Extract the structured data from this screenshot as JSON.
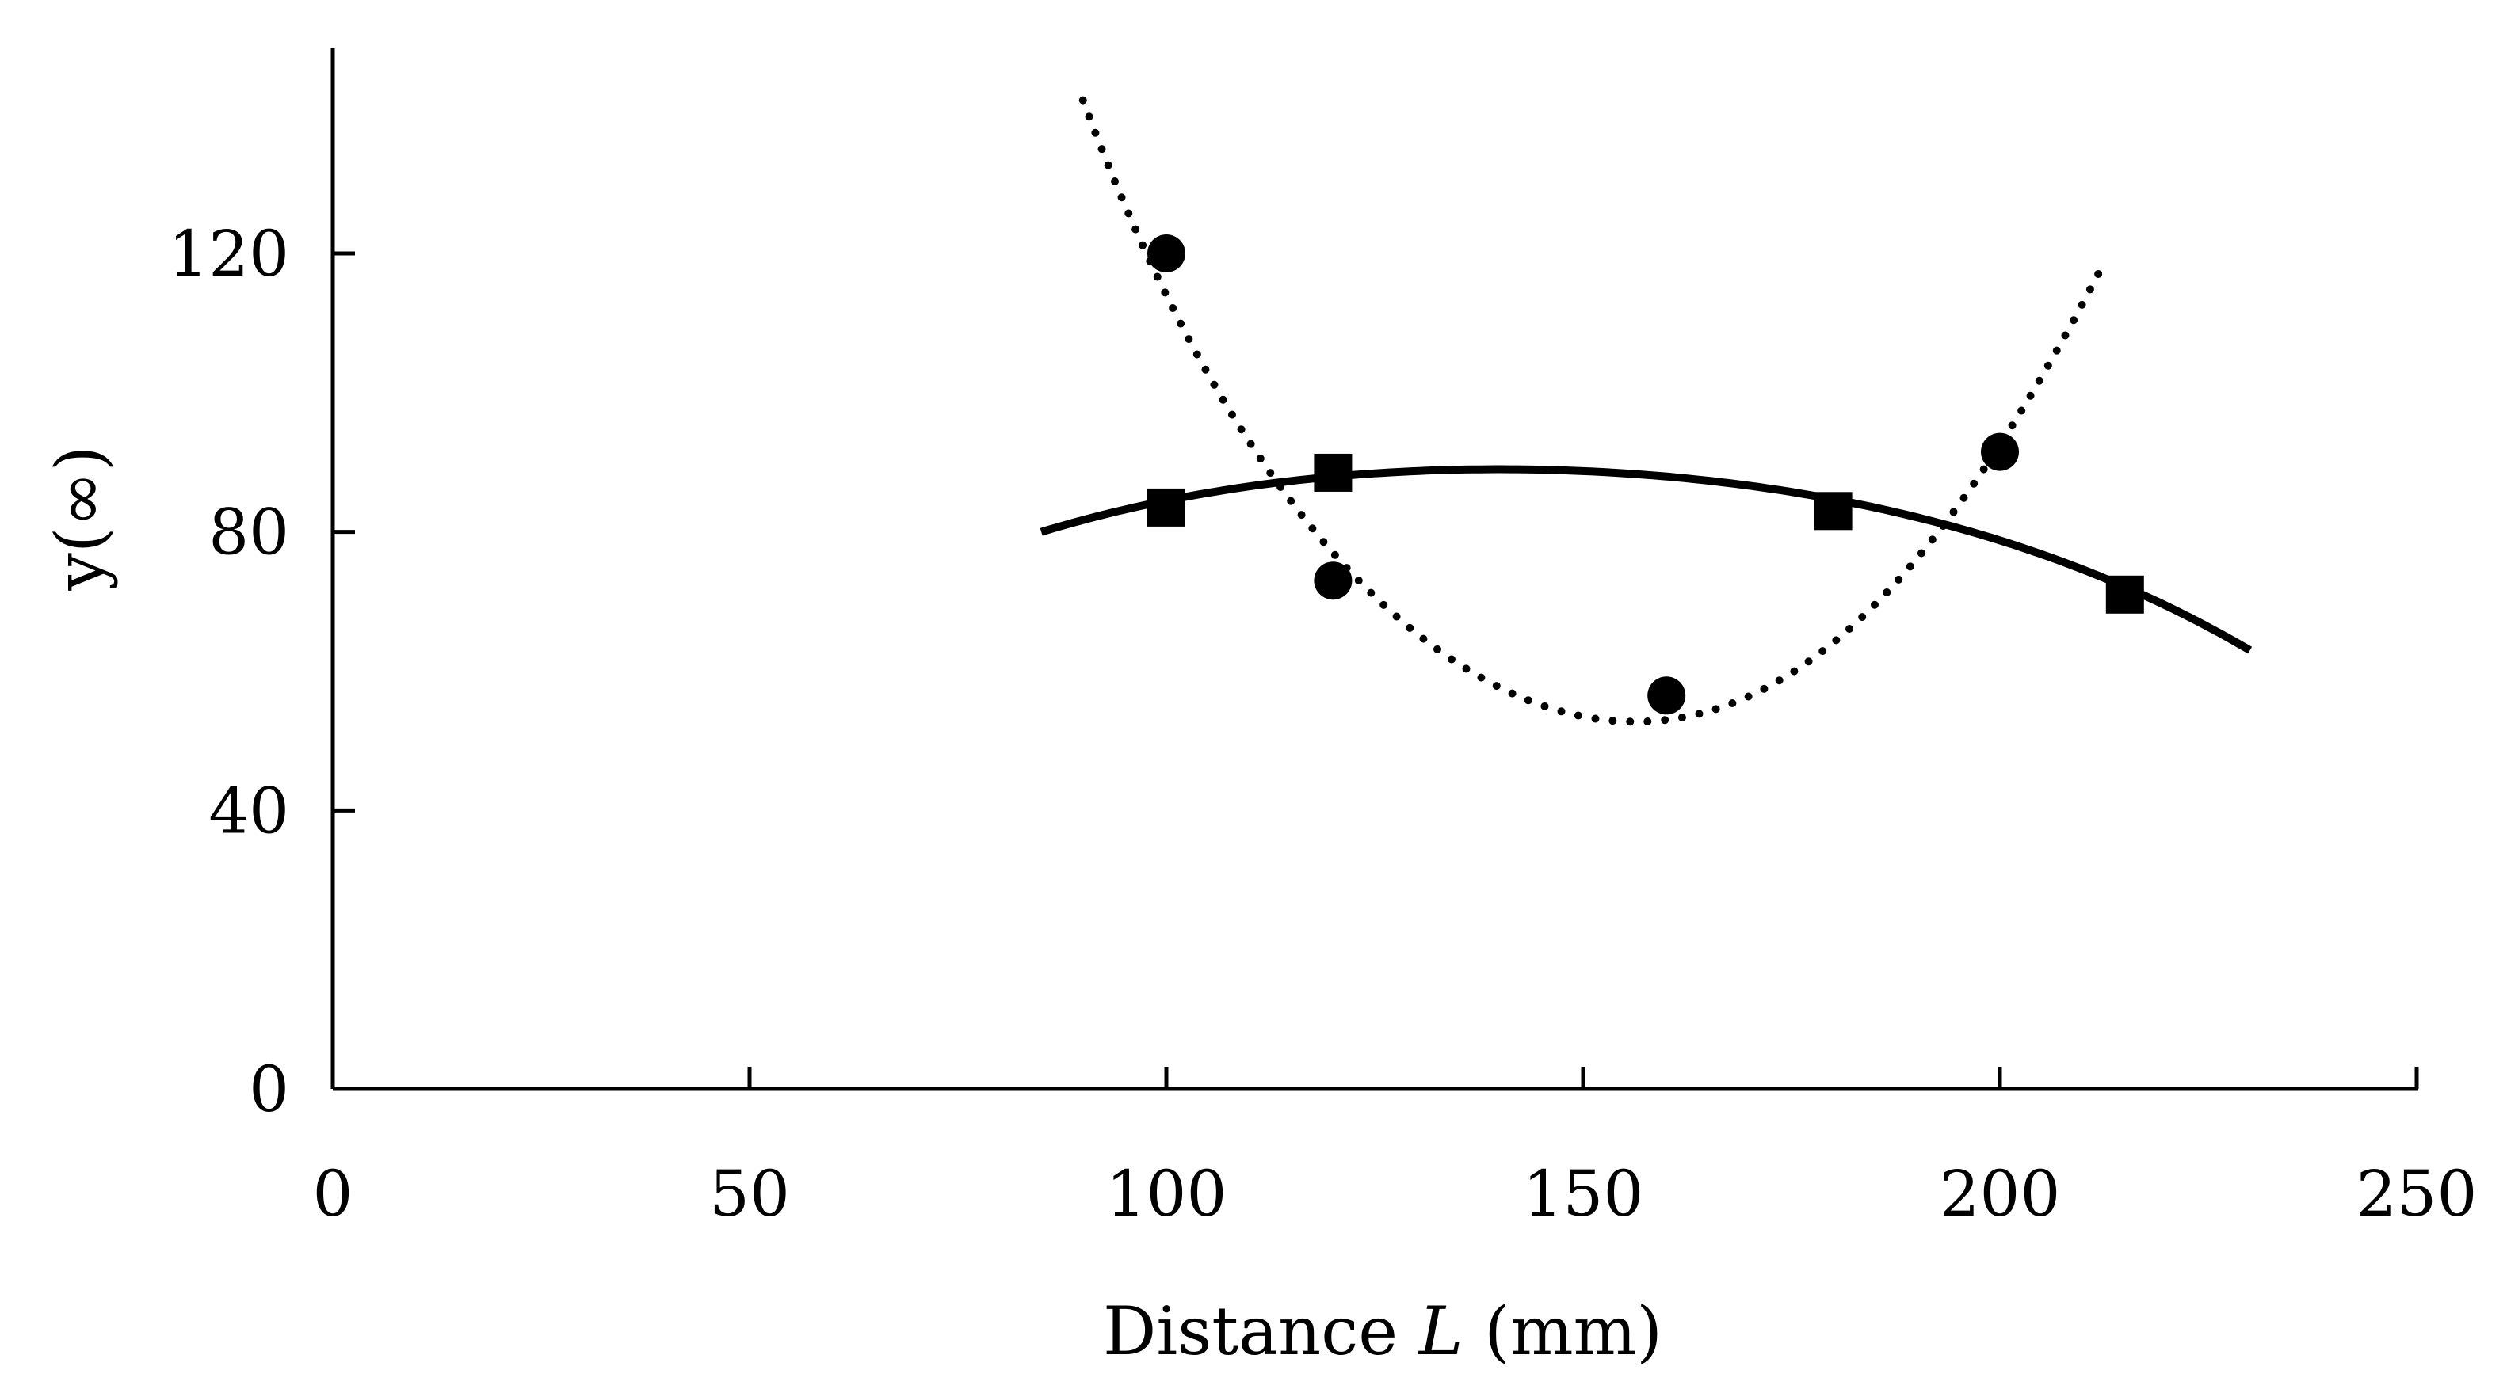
{
  "chart_data": {
    "type": "scatter",
    "title": "",
    "xlabel": "Distance L (mm)",
    "xlabel_parts": {
      "prefix": "Distance ",
      "italic": "L",
      "suffix": " (mm)"
    },
    "ylabel": "y(∞)",
    "xlim": [
      0,
      250
    ],
    "ylim": [
      0,
      150
    ],
    "xticks": [
      0,
      50,
      100,
      150,
      200,
      250
    ],
    "xtick_labels": [
      "0",
      "50",
      "100",
      "150",
      "200",
      "250"
    ],
    "yticks": [
      0,
      40,
      80,
      120
    ],
    "ytick_labels": [
      "0",
      "40",
      "80",
      "120"
    ],
    "grid": false,
    "series": [
      {
        "name": "circles",
        "marker": "circle",
        "x": [
          100,
          120,
          160,
          200
        ],
        "y": [
          120,
          73,
          56.5,
          91.5
        ],
        "fit": {
          "style": "dotted",
          "x_range": [
            90,
            212
          ],
          "x": [
            90,
            100,
            120,
            160,
            200,
            212
          ],
          "y": [
            142,
            114,
            77,
            53,
            92.5,
            117.5
          ]
        }
      },
      {
        "name": "squares",
        "marker": "square",
        "x": [
          100,
          120,
          180,
          215
        ],
        "y": [
          83.5,
          88.5,
          83,
          71
        ],
        "fit": {
          "style": "solid",
          "x_range": [
            85,
            230
          ],
          "x": [
            85,
            100,
            140,
            180,
            230
          ],
          "y": [
            80,
            84.5,
            89,
            84.7,
            63
          ]
        }
      }
    ],
    "colors": {
      "ink": "#000000",
      "background": "#ffffff"
    }
  }
}
